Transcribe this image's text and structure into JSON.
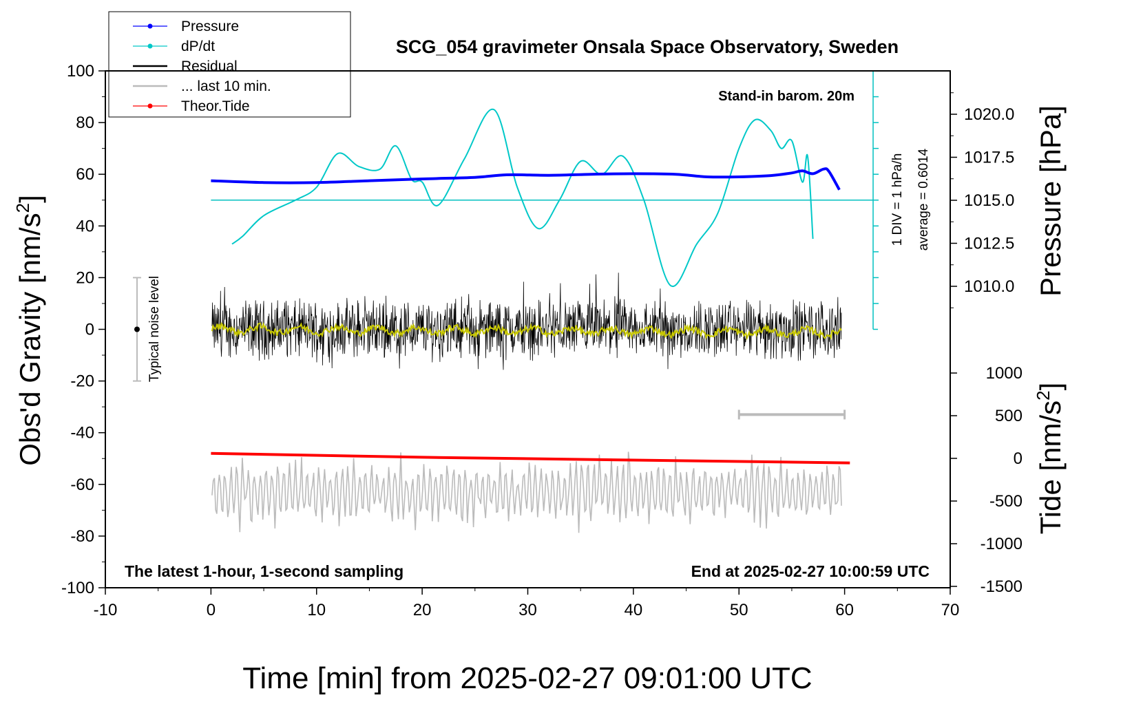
{
  "chart_data": {
    "type": "line",
    "title": "SCG_054 gravimeter Onsala Space Observatory, Sweden",
    "subtitle_left": "The latest 1-hour, 1-second sampling",
    "subtitle_right": "End at 2025-02-27 10:00:59 UTC",
    "annotation_barom": "Stand-in barom. 20m",
    "annotation_div": "1 DIV = 1 hPa/h",
    "annotation_avg": "average = 0.6014",
    "annotation_noise": "Typical noise level",
    "xlabel": "Time [min] from 2025-02-27 09:01:00 UTC",
    "ylabel_left": "Obs'd Gravity [nm/s",
    "ylabel_left_sup": "2",
    "ylabel_left_end": "]",
    "ylabel_right_top": "Pressure [hPa]",
    "ylabel_right_bottom": "Tide [nm/s",
    "ylabel_right_bottom_sup": "2",
    "ylabel_right_bottom_end": "]",
    "xlim": [
      -10,
      70
    ],
    "xticks": [
      -10,
      0,
      10,
      20,
      30,
      40,
      50,
      60,
      70
    ],
    "ylim_gravity": [
      -100,
      100
    ],
    "yticks_gravity": [
      -100,
      -80,
      -60,
      -40,
      -20,
      0,
      20,
      40,
      60,
      80,
      100
    ],
    "pressure_range": [
      1005.0,
      1022.5
    ],
    "pressure_ticks": [
      "1010.0",
      "1012.5",
      "1015.0",
      "1017.5",
      "1020.0"
    ],
    "tide_range": [
      -1500,
      1500
    ],
    "tide_ticks": [
      -1500,
      -1000,
      -500,
      0,
      500,
      1000
    ],
    "legend": [
      {
        "label": "Pressure",
        "color": "#0000ff",
        "marker": true
      },
      {
        "label": "dP/dt",
        "color": "#00c8c8",
        "marker": true
      },
      {
        "label": "Residual",
        "color": "#000000",
        "marker": false
      },
      {
        "label": "... last 10 min.",
        "color": "#bbbbbb",
        "marker": false
      },
      {
        "label": "Theor.Tide",
        "color": "#ff0000",
        "marker": true
      }
    ],
    "noise_level": {
      "x": -7,
      "y": 0,
      "low": -20,
      "high": 20
    },
    "last10_bar": {
      "x_start": 50,
      "x_end": 60,
      "y": -33
    },
    "dpdt_baseline": 50,
    "pressure_series": {
      "name": "Pressure",
      "x": [
        0,
        5,
        10,
        15,
        20,
        25,
        28,
        32,
        36,
        40,
        44,
        47,
        50,
        53,
        55,
        56,
        57,
        58,
        58.5,
        59.5
      ],
      "y": [
        57.5,
        56.8,
        56.8,
        57.5,
        58.2,
        58.8,
        59.8,
        59.6,
        60.0,
        60.2,
        60.0,
        59.0,
        59.0,
        59.5,
        60.5,
        61.3,
        60.2,
        62.0,
        61.2,
        54.0
      ]
    },
    "dpdt_series": {
      "name": "dP/dt",
      "x": [
        2,
        3,
        5,
        8,
        10,
        12,
        14,
        16,
        17.5,
        19,
        20,
        21.5,
        24,
        26.8,
        29,
        31,
        33,
        35,
        37,
        39,
        41,
        43.5,
        46,
        48,
        50,
        51.5,
        53,
        54,
        55,
        56,
        56.5,
        57
      ],
      "y": [
        33,
        36,
        44,
        50,
        55,
        68,
        63,
        62,
        71,
        58,
        57,
        48,
        66,
        85,
        55,
        39,
        50,
        65,
        60,
        67,
        50,
        17,
        33,
        45,
        70,
        81,
        77,
        70,
        73,
        57,
        67,
        35
      ]
    },
    "tide_series": {
      "name": "Theor.Tide",
      "x": [
        0,
        20,
        40,
        60.5
      ],
      "y": [
        -48,
        -49.5,
        -50.6,
        -51.7
      ]
    }
  }
}
